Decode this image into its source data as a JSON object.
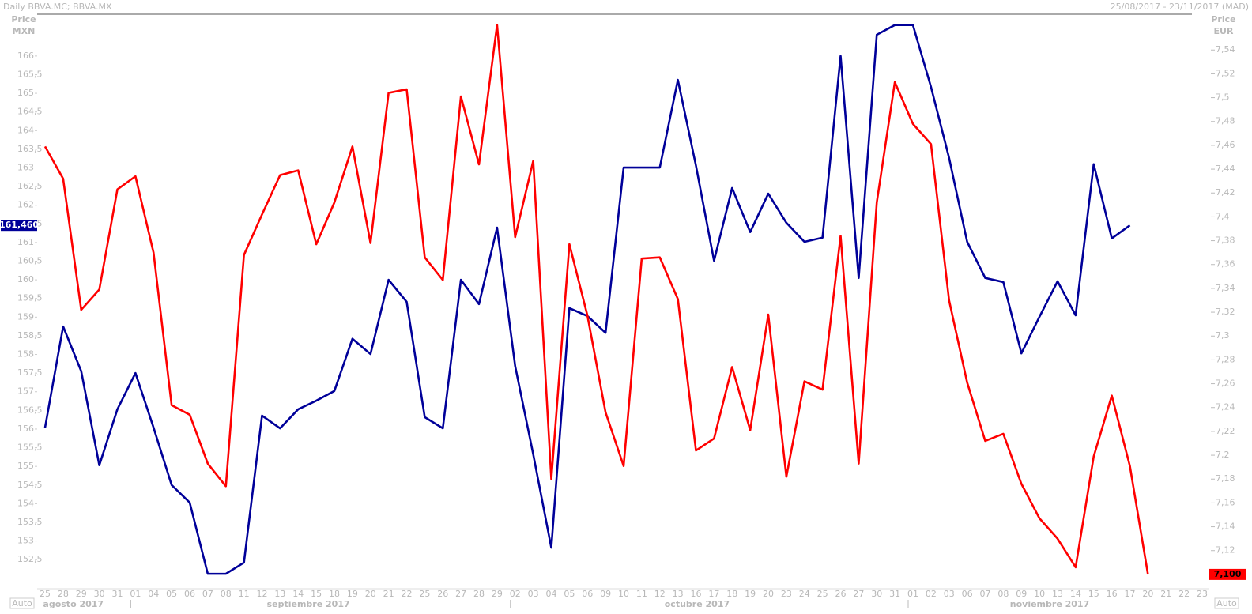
{
  "chart_data": {
    "type": "line",
    "title": "Daily BBVA.MC; BBVA.MX",
    "subtitle": "25/08/2017 - 23/11/2017 (MAD)",
    "y_label": [
      "Price",
      "MXN"
    ],
    "y2_label": [
      "Price",
      "EUR"
    ],
    "scale_buttons": [
      "Auto",
      "Auto"
    ],
    "categories": [
      "25",
      "28",
      "29",
      "30",
      "31",
      "01",
      "04",
      "05",
      "06",
      "07",
      "08",
      "11",
      "12",
      "13",
      "14",
      "15",
      "18",
      "19",
      "20",
      "21",
      "22",
      "25",
      "26",
      "27",
      "28",
      "29",
      "02",
      "03",
      "04",
      "05",
      "06",
      "09",
      "10",
      "11",
      "12",
      "13",
      "16",
      "17",
      "18",
      "19",
      "20",
      "23",
      "24",
      "25",
      "26",
      "27",
      "30",
      "31",
      "01",
      "02",
      "03",
      "06",
      "07",
      "08",
      "09",
      "10",
      "13",
      "14",
      "15",
      "16",
      "17",
      "20",
      "21",
      "22",
      "23"
    ],
    "months": [
      "agosto 2017",
      "septiembre 2017",
      "octubre 2017",
      "noviembre 2017"
    ],
    "month_starts": [
      0,
      5,
      26,
      48
    ],
    "series": [
      {
        "name": "BBVA.MX",
        "color": "#000099",
        "axis": "y",
        "values": [
          156.04,
          158.75,
          157.55,
          155.03,
          156.53,
          157.5,
          156.04,
          154.5,
          154.03,
          152.12,
          152.12,
          152.42,
          156.36,
          156.02,
          156.53,
          156.76,
          157.02,
          158.42,
          158.01,
          160.0,
          159.41,
          156.32,
          156.02,
          160.0,
          159.35,
          161.4,
          157.69,
          155.32,
          152.82,
          159.24,
          159.03,
          158.58,
          163.01,
          163.01,
          163.01,
          165.36,
          163.06,
          160.51,
          162.46,
          161.28,
          162.31,
          161.53,
          161.02,
          161.13,
          166.0,
          160.05,
          166.57,
          166.83,
          166.83,
          165.17,
          163.27,
          161.02,
          160.05,
          159.94,
          158.03,
          159.01,
          159.96,
          159.05,
          163.1,
          161.11,
          161.46,
          null,
          null,
          null,
          null
        ],
        "value_labels": [
          null,
          null,
          null,
          null,
          null,
          null,
          null,
          null,
          null,
          null,
          null,
          null,
          null,
          null,
          null,
          null,
          null,
          null,
          null,
          null,
          null,
          null,
          null,
          null,
          null,
          null,
          null,
          null,
          null,
          null,
          null,
          null,
          null,
          null,
          null,
          null,
          null,
          null,
          null,
          null,
          null,
          null,
          null,
          null,
          null,
          null,
          null,
          null,
          null,
          null,
          null,
          null,
          null,
          null,
          null,
          null,
          null,
          null,
          null,
          null,
          "161,460",
          null,
          null,
          null,
          null
        ]
      },
      {
        "name": "BBVA.MC",
        "color": "#ff0000",
        "axis": "y2",
        "values": [
          7.459,
          7.432,
          7.322,
          7.339,
          7.423,
          7.434,
          7.37,
          7.242,
          7.234,
          7.193,
          7.174,
          7.368,
          7.402,
          7.435,
          7.439,
          7.377,
          7.412,
          7.459,
          7.378,
          7.504,
          7.507,
          7.366,
          7.347,
          7.501,
          7.444,
          7.561,
          7.383,
          7.447,
          7.18,
          7.377,
          7.317,
          7.236,
          7.191,
          7.365,
          7.366,
          7.331,
          7.204,
          7.214,
          7.274,
          7.221,
          7.318,
          7.182,
          7.262,
          7.255,
          7.384,
          7.193,
          7.412,
          7.513,
          7.478,
          7.461,
          7.33,
          7.261,
          7.212,
          7.218,
          7.176,
          7.147,
          7.13,
          7.106,
          7.199,
          7.25,
          7.191,
          7.1,
          null,
          null,
          null
        ],
        "value_labels": [
          null,
          null,
          null,
          null,
          null,
          null,
          null,
          null,
          null,
          null,
          null,
          null,
          null,
          null,
          null,
          null,
          null,
          null,
          null,
          null,
          null,
          null,
          null,
          null,
          null,
          null,
          null,
          null,
          null,
          null,
          null,
          null,
          null,
          null,
          null,
          null,
          null,
          null,
          null,
          null,
          null,
          null,
          null,
          null,
          null,
          null,
          null,
          null,
          null,
          null,
          null,
          null,
          null,
          null,
          null,
          null,
          null,
          null,
          null,
          null,
          null,
          "7,100",
          null,
          null,
          null
        ]
      }
    ],
    "ylim": [
      151.72,
      167.12
    ],
    "yticks": [
      {
        "value": 152.5,
        "label": "152,5"
      },
      153,
      {
        "value": 153.5,
        "label": "153,5"
      },
      154,
      {
        "value": 154.5,
        "label": "154,5"
      },
      155,
      {
        "value": 155.5,
        "label": "155,5"
      },
      156,
      {
        "value": 156.5,
        "label": "156,5"
      },
      157,
      {
        "value": 157.5,
        "label": "157,5"
      },
      158,
      {
        "value": 158.5,
        "label": "158,5"
      },
      159,
      {
        "value": 159.5,
        "label": "159,5"
      },
      160,
      {
        "value": 160.5,
        "label": "160,5"
      },
      161,
      {
        "value": 161.5,
        "label": "161,5"
      },
      162,
      {
        "value": 162.5,
        "label": "162,5"
      },
      163,
      {
        "value": 163.5,
        "label": "163,5"
      },
      164,
      {
        "value": 164.5,
        "label": "164,5"
      },
      165,
      {
        "value": 165.5,
        "label": "165,5"
      },
      166
    ],
    "y2lim": [
      7.088,
      7.57
    ],
    "y2ticks": [
      {
        "value": 7.12,
        "label": "7,12"
      },
      {
        "value": 7.14,
        "label": "7,14"
      },
      {
        "value": 7.16,
        "label": "7,16"
      },
      {
        "value": 7.18,
        "label": "7,18"
      },
      {
        "value": 7.2,
        "label": "7,2"
      },
      {
        "value": 7.22,
        "label": "7,22"
      },
      {
        "value": 7.24,
        "label": "7,24"
      },
      {
        "value": 7.26,
        "label": "7,26"
      },
      {
        "value": 7.28,
        "label": "7,28"
      },
      {
        "value": 7.3,
        "label": "7,3"
      },
      {
        "value": 7.32,
        "label": "7,32"
      },
      {
        "value": 7.34,
        "label": "7,34"
      },
      {
        "value": 7.36,
        "label": "7,36"
      },
      {
        "value": 7.38,
        "label": "7,38"
      },
      {
        "value": 7.4,
        "label": "7,4"
      },
      {
        "value": 7.42,
        "label": "7,42"
      },
      {
        "value": 7.44,
        "label": "7,44"
      },
      {
        "value": 7.46,
        "label": "7,46"
      },
      {
        "value": 7.48,
        "label": "7,48"
      },
      {
        "value": 7.5,
        "label": "7,5"
      },
      {
        "value": 7.52,
        "label": "7,52"
      },
      {
        "value": 7.54,
        "label": "7,54"
      }
    ],
    "grid": false
  }
}
